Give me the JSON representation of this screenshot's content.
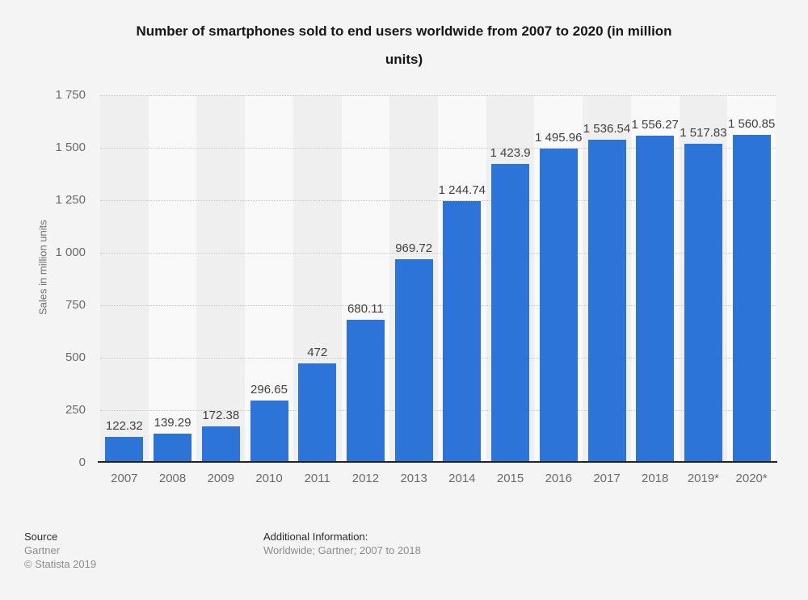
{
  "page": {
    "background": "#f4f4f4"
  },
  "header": {
    "title_lines": [
      "Number of smartphones sold to end users worldwide from 2007 to 2020 (in million",
      "units)"
    ]
  },
  "chart_data": {
    "type": "bar",
    "title": "Number of smartphones sold to end users worldwide from 2007 to 2020 (in million units)",
    "xlabel": "",
    "ylabel": "Sales in million units",
    "categories": [
      "2007",
      "2008",
      "2009",
      "2010",
      "2011",
      "2012",
      "2013",
      "2014",
      "2015",
      "2016",
      "2017",
      "2018",
      "2019*",
      "2020*"
    ],
    "values": [
      122.32,
      139.29,
      172.38,
      296.65,
      472,
      680.11,
      969.72,
      1244.74,
      1423.9,
      1495.96,
      1536.54,
      1556.27,
      1517.83,
      1560.85
    ],
    "value_labels": [
      "122.32",
      "139.29",
      "172.38",
      "296.65",
      "472",
      "680.11",
      "969.72",
      "1 244.74",
      "1 423.9",
      "1 495.96",
      "1 536.54",
      "1 556.27",
      "1 517.83",
      "1 560.85"
    ],
    "ylim": [
      0,
      1750
    ],
    "ytick_step": 250,
    "ytick_labels_top_down": [
      "1 750",
      "1 500",
      "1 250",
      "1 000",
      "750",
      "500",
      "250",
      "0"
    ],
    "grid": "horizontal-dotted",
    "legend": "none",
    "bar_color": "#2d74d9",
    "stripe_colors": [
      "#efefef",
      "#f9f9f9"
    ]
  },
  "footer": {
    "source_label": "Source",
    "source_line1": "Gartner",
    "source_line2": "© Statista 2019",
    "additional_label": "Additional Information:",
    "additional_text": "Worldwide; Gartner; 2007 to 2018"
  }
}
